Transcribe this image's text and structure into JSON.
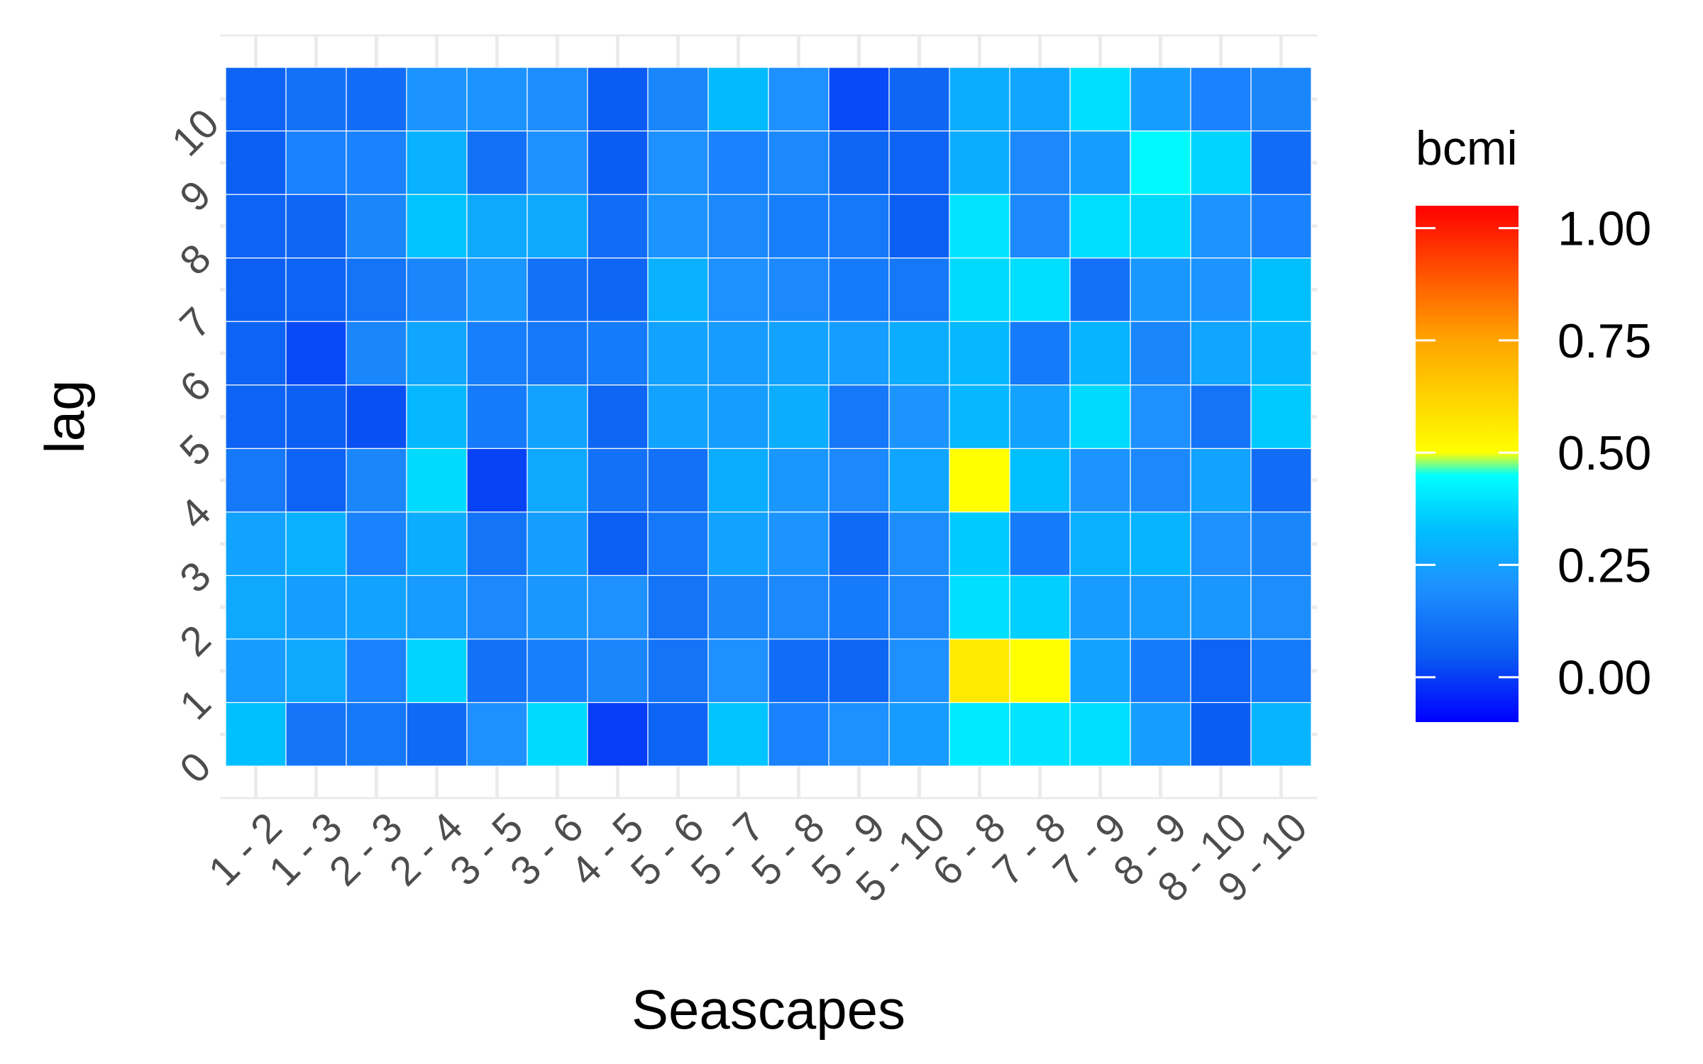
{
  "chart_data": {
    "type": "heatmap",
    "xlabel": "Seascapes",
    "ylabel": "lag",
    "x_categories": [
      "1 - 2",
      "1 - 3",
      "2 - 3",
      "2 - 4",
      "3 - 5",
      "3 - 6",
      "4 - 5",
      "5 - 6",
      "5 - 7",
      "5 - 8",
      "5 - 9",
      "5 - 10",
      "6 - 8",
      "7 - 8",
      "7 - 9",
      "8 - 9",
      "8 - 10",
      "9 - 10"
    ],
    "y_categories": [
      "0",
      "1",
      "2",
      "3",
      "4",
      "5",
      "6",
      "7",
      "8",
      "9",
      "10"
    ],
    "values": [
      [
        0.33,
        0.12,
        0.13,
        0.09,
        0.2,
        0.38,
        0.0,
        0.07,
        0.34,
        0.16,
        0.2,
        0.23,
        0.41,
        0.4,
        0.39,
        0.24,
        0.05,
        0.3
      ],
      [
        0.23,
        0.27,
        0.16,
        0.37,
        0.11,
        0.15,
        0.17,
        0.12,
        0.2,
        0.1,
        0.08,
        0.2,
        0.56,
        0.5,
        0.25,
        0.14,
        0.07,
        0.14
      ],
      [
        0.27,
        0.24,
        0.25,
        0.23,
        0.18,
        0.22,
        0.2,
        0.12,
        0.17,
        0.18,
        0.14,
        0.18,
        0.39,
        0.36,
        0.23,
        0.23,
        0.22,
        0.19
      ],
      [
        0.25,
        0.29,
        0.16,
        0.28,
        0.12,
        0.24,
        0.06,
        0.13,
        0.25,
        0.21,
        0.09,
        0.19,
        0.35,
        0.14,
        0.29,
        0.3,
        0.2,
        0.17
      ],
      [
        0.13,
        0.07,
        0.17,
        0.38,
        0.01,
        0.27,
        0.11,
        0.11,
        0.28,
        0.22,
        0.18,
        0.26,
        0.5,
        0.33,
        0.21,
        0.18,
        0.25,
        0.1
      ],
      [
        0.07,
        0.06,
        0.03,
        0.31,
        0.14,
        0.25,
        0.08,
        0.25,
        0.24,
        0.28,
        0.13,
        0.21,
        0.31,
        0.25,
        0.38,
        0.2,
        0.12,
        0.35
      ],
      [
        0.07,
        0.02,
        0.17,
        0.26,
        0.15,
        0.13,
        0.14,
        0.25,
        0.23,
        0.25,
        0.24,
        0.28,
        0.31,
        0.14,
        0.3,
        0.17,
        0.26,
        0.31
      ],
      [
        0.06,
        0.07,
        0.12,
        0.17,
        0.22,
        0.11,
        0.08,
        0.29,
        0.2,
        0.18,
        0.14,
        0.13,
        0.38,
        0.39,
        0.11,
        0.22,
        0.21,
        0.33
      ],
      [
        0.07,
        0.08,
        0.17,
        0.34,
        0.27,
        0.27,
        0.1,
        0.21,
        0.18,
        0.15,
        0.13,
        0.06,
        0.4,
        0.18,
        0.39,
        0.38,
        0.21,
        0.16
      ],
      [
        0.06,
        0.16,
        0.16,
        0.29,
        0.11,
        0.2,
        0.05,
        0.2,
        0.16,
        0.18,
        0.08,
        0.07,
        0.28,
        0.18,
        0.24,
        0.44,
        0.37,
        0.1
      ],
      [
        0.07,
        0.11,
        0.1,
        0.21,
        0.21,
        0.19,
        0.05,
        0.17,
        0.32,
        0.2,
        0.02,
        0.08,
        0.28,
        0.26,
        0.39,
        0.24,
        0.16,
        0.17
      ]
    ],
    "legend": {
      "title": "bcmi",
      "range": [
        -0.1,
        1.05
      ],
      "ticks": [
        0.0,
        0.25,
        0.5,
        0.75,
        1.0
      ],
      "tick_labels": [
        "0.00",
        "0.25",
        "0.50",
        "0.75",
        "1.00"
      ],
      "placement": "right"
    },
    "colors": {
      "scale": [
        "#0000ff",
        "#0a5cf2",
        "#1e90ff",
        "#00bfff",
        "#00ffff",
        "#ffff00",
        "#ffa500",
        "#ff0000"
      ],
      "scale_stops": [
        -0.1,
        0.05,
        0.2,
        0.33,
        0.45,
        0.5,
        0.75,
        1.05
      ],
      "grid": "#ebebeb",
      "tick_text": "#4d4d4d"
    }
  }
}
